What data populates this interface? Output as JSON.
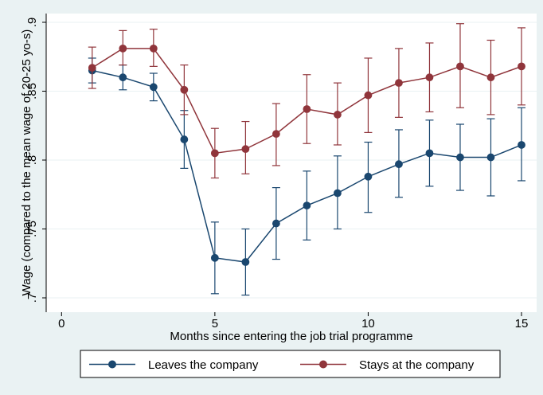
{
  "chart_data": {
    "type": "line",
    "xlabel": "Months since entering the job trial programme",
    "ylabel": "Wage (compared to the mean wage of 20-25 yo-s)",
    "xlim": [
      0,
      15
    ],
    "ylim": [
      0.7,
      0.9
    ],
    "xticks": [
      0,
      5,
      10,
      15
    ],
    "xtick_labels": [
      "0",
      "5",
      "10",
      "15"
    ],
    "yticks": [
      0.7,
      0.75,
      0.8,
      0.85,
      0.9
    ],
    "ytick_labels": [
      ".7",
      ".75",
      ".8",
      ".85",
      ".9"
    ],
    "grid": "horizontal",
    "legend_position": "bottom",
    "x": [
      1,
      2,
      3,
      4,
      5,
      6,
      7,
      8,
      9,
      10,
      11,
      12,
      13,
      14,
      15
    ],
    "series": [
      {
        "name": "Leaves the company",
        "color": "#1a476f",
        "values": [
          0.865,
          0.86,
          0.853,
          0.815,
          0.729,
          0.726,
          0.754,
          0.767,
          0.776,
          0.788,
          0.797,
          0.805,
          0.802,
          0.802,
          0.811
        ],
        "lower": [
          0.856,
          0.851,
          0.843,
          0.794,
          0.703,
          0.702,
          0.728,
          0.742,
          0.75,
          0.762,
          0.773,
          0.781,
          0.778,
          0.774,
          0.785
        ],
        "upper": [
          0.874,
          0.869,
          0.863,
          0.836,
          0.755,
          0.75,
          0.78,
          0.792,
          0.803,
          0.813,
          0.822,
          0.829,
          0.826,
          0.83,
          0.838
        ]
      },
      {
        "name": "Stays at the company",
        "color": "#90353b",
        "values": [
          0.867,
          0.881,
          0.881,
          0.851,
          0.805,
          0.808,
          0.819,
          0.837,
          0.833,
          0.847,
          0.856,
          0.86,
          0.868,
          0.86,
          0.868
        ],
        "lower": [
          0.852,
          0.869,
          0.868,
          0.833,
          0.787,
          0.79,
          0.796,
          0.812,
          0.811,
          0.82,
          0.831,
          0.835,
          0.838,
          0.833,
          0.84
        ],
        "upper": [
          0.882,
          0.894,
          0.895,
          0.869,
          0.823,
          0.828,
          0.841,
          0.862,
          0.856,
          0.874,
          0.881,
          0.885,
          0.899,
          0.887,
          0.896
        ]
      }
    ]
  }
}
